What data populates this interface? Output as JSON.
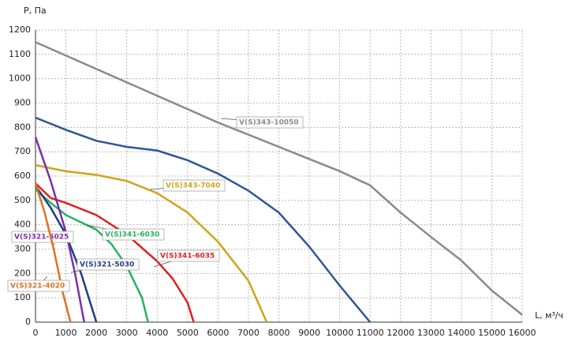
{
  "chart_data": {
    "type": "line",
    "y_label": "P, Па",
    "x_label": "L, м³/ч",
    "xlim": [
      0,
      16000
    ],
    "ylim": [
      0,
      1200
    ],
    "xticks": [
      0,
      1000,
      2000,
      3000,
      4000,
      5000,
      6000,
      7000,
      8000,
      9000,
      10000,
      11000,
      12000,
      13000,
      14000,
      15000,
      16000
    ],
    "yticks": [
      0,
      100,
      200,
      300,
      400,
      500,
      600,
      700,
      800,
      900,
      1000,
      1100,
      1200
    ],
    "grid": true,
    "series": [
      {
        "name": "V(S)343-10050",
        "color": "#8a8a8a",
        "x": [
          0,
          2000,
          4000,
          6000,
          8000,
          10000,
          11000,
          12000,
          13000,
          14000,
          15000,
          16000
        ],
        "values": [
          1150,
          1040,
          930,
          820,
          720,
          620,
          562,
          450,
          350,
          253,
          130,
          30
        ]
      },
      {
        "color": "#2e5597",
        "x": [
          0,
          1000,
          2000,
          3000,
          4000,
          5000,
          6000,
          7000,
          8000,
          9000,
          10000,
          11000
        ],
        "values": [
          840,
          790,
          745,
          720,
          705,
          665,
          610,
          540,
          450,
          310,
          150,
          0
        ]
      },
      {
        "name": "V(S)343-7040",
        "color": "#d2a21a",
        "x": [
          0,
          1000,
          2000,
          3000,
          4000,
          5000,
          6000,
          7000,
          7600
        ],
        "values": [
          645,
          620,
          605,
          580,
          530,
          450,
          330,
          170,
          0
        ]
      },
      {
        "name": "V(S)341-6035",
        "color": "#e02020",
        "x": [
          0,
          500,
          1000,
          2000,
          3000,
          4000,
          4500,
          5000,
          5200
        ],
        "values": [
          570,
          510,
          490,
          440,
          360,
          250,
          180,
          80,
          0
        ]
      },
      {
        "name": "V(S)341-6030",
        "color": "#22b35a",
        "x": [
          0,
          500,
          1000,
          2000,
          2500,
          3000,
          3500,
          3700
        ],
        "values": [
          545,
          490,
          440,
          380,
          320,
          230,
          100,
          0
        ]
      },
      {
        "name": "V(S)321-5030",
        "color": "#1f3f85",
        "x": [
          0,
          500,
          1000,
          1500,
          2000
        ],
        "values": [
          560,
          470,
          360,
          200,
          0
        ]
      },
      {
        "name": "V(S)321-5025",
        "color": "#7b2fa8",
        "x": [
          0,
          500,
          1000,
          1300,
          1600
        ],
        "values": [
          760,
          580,
          370,
          200,
          0
        ]
      },
      {
        "name": "V(S)321-4020",
        "color": "#e07020",
        "x": [
          0,
          300,
          600,
          900,
          1150
        ],
        "values": [
          570,
          450,
          300,
          120,
          0
        ]
      }
    ]
  }
}
